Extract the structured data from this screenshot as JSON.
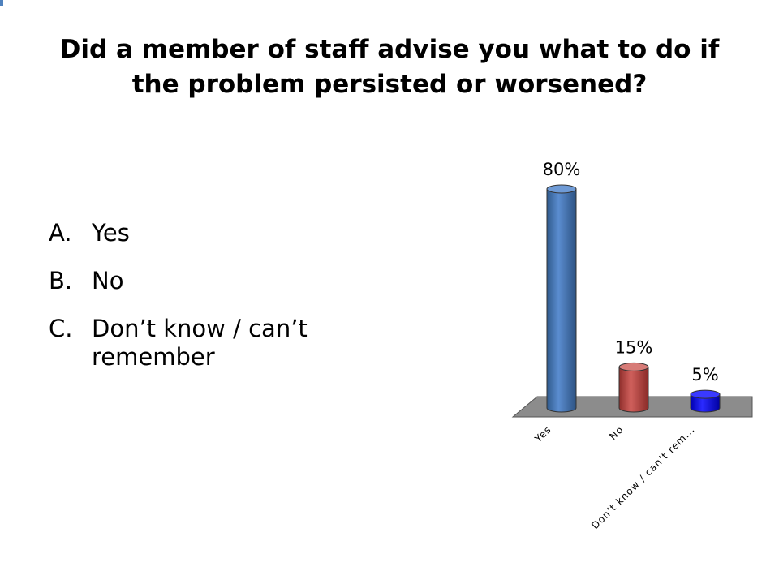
{
  "title": {
    "line1": "Did a member of staff advise you what to do if",
    "line2": "the problem persisted or worsened?"
  },
  "answers": [
    {
      "letter": "A.",
      "text": "Yes"
    },
    {
      "letter": "B.",
      "text": "No"
    },
    {
      "letter": "C.",
      "text": "Don’t know / can’t remember"
    }
  ],
  "colors": {
    "yes_bar": "#4f81bd",
    "no_bar": "#c0504d",
    "dk_bar": "#0000ff",
    "floor": "#8c8c8c"
  },
  "chart_data": {
    "type": "bar",
    "categories": [
      "Yes",
      "No",
      "Don’t know / can’t rem..."
    ],
    "values": [
      80,
      15,
      5
    ],
    "data_labels": [
      "80%",
      "15%",
      "5%"
    ],
    "ylim": [
      0,
      80
    ],
    "grid": false,
    "title": "",
    "xlabel": "",
    "ylabel": ""
  }
}
